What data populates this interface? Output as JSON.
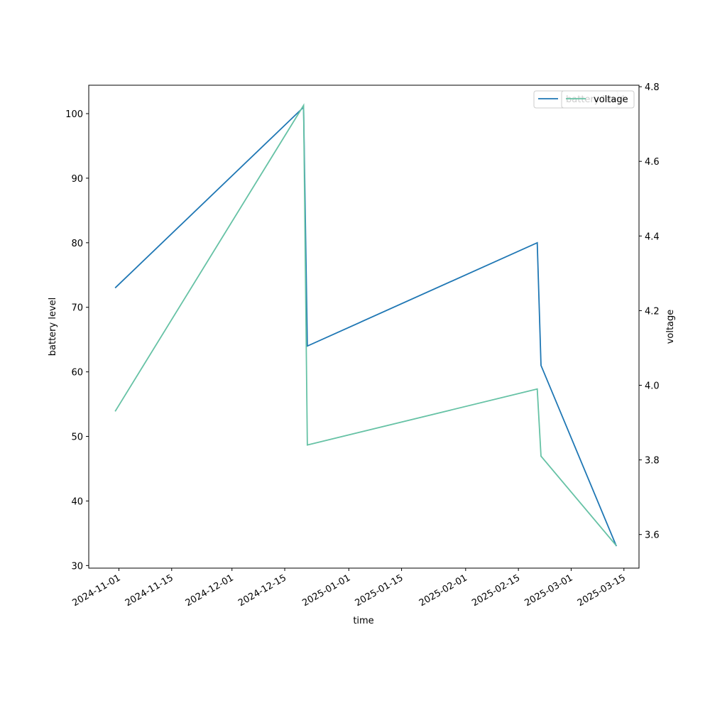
{
  "chart_data": {
    "type": "line",
    "x_label": "time",
    "y_label": "battery level",
    "y2_label": "voltage",
    "x": [
      "2024-10-31",
      "2024-12-20",
      "2024-12-21",
      "2025-02-20",
      "2025-02-21",
      "2025-03-13"
    ],
    "series": [
      {
        "name": "battery level",
        "color": "#1f77b4",
        "values": [
          73,
          101,
          64,
          80,
          61,
          33
        ]
      },
      {
        "name": "voltage",
        "color": "#66c2a5",
        "axis": "y2",
        "values": [
          3.93,
          4.75,
          3.84,
          3.99,
          3.81,
          3.57
        ]
      }
    ],
    "xlim": [
      "2024-10-24",
      "2025-03-19"
    ],
    "xticks": [
      "2024-11-01",
      "2024-11-15",
      "2024-12-01",
      "2024-12-15",
      "2025-01-01",
      "2025-01-15",
      "2025-02-01",
      "2025-02-15",
      "2025-03-01",
      "2025-03-15"
    ],
    "ylim": [
      29.6,
      104.4
    ],
    "yticks": [
      30,
      40,
      50,
      60,
      70,
      80,
      90,
      100
    ],
    "y2lim": [
      3.51,
      4.804
    ],
    "y2ticks": [
      3.6,
      3.8,
      {
        "value": 4,
        "label": "4.0"
      },
      4.2,
      4.4,
      4.6,
      4.8
    ],
    "legend": "upper right",
    "grid": false
  }
}
